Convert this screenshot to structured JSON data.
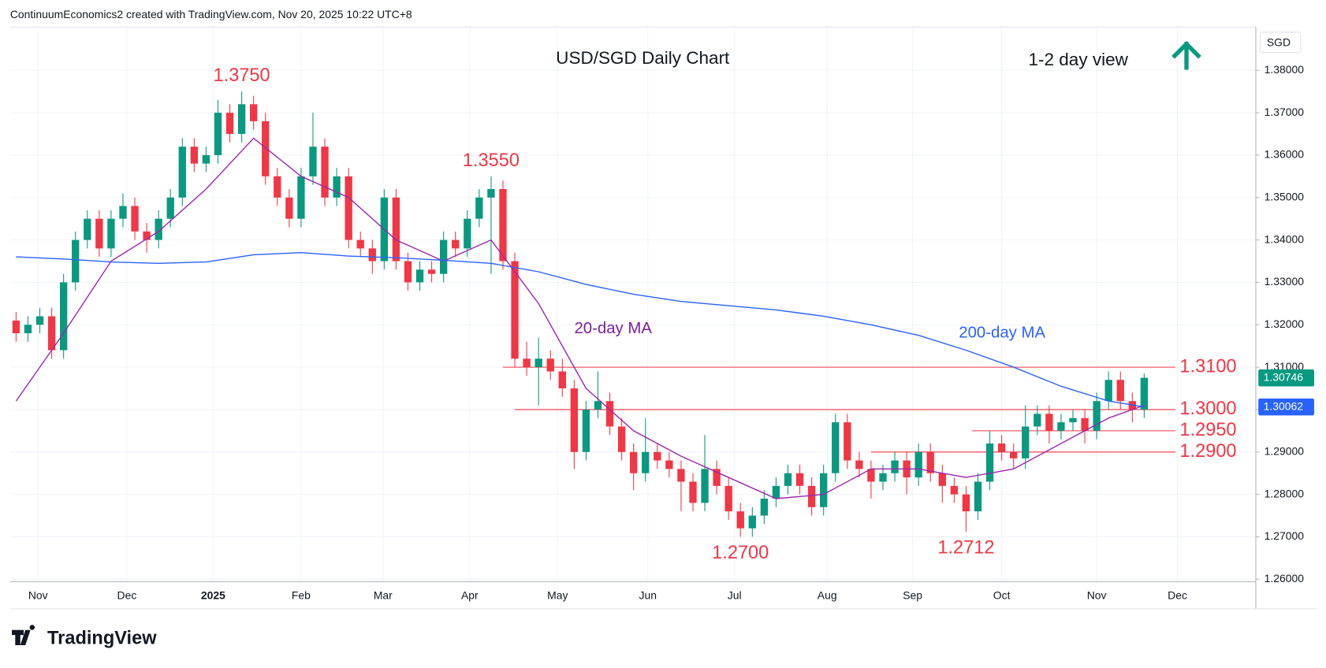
{
  "chart_data": {
    "type": "candlestick",
    "header": "ContinuumEconomics2 created with TradingView.com, Nov 20, 2025 10:22 UTC+8",
    "title": "USD/SGD Daily Chart",
    "subtitle": "1-2 day view",
    "currency": "SGD",
    "brand": "TradingView",
    "up_color": "#089981",
    "down_color": "#f23645",
    "open": [
      1.321,
      1.318,
      1.32,
      1.322,
      1.314,
      1.33,
      1.34,
      1.345,
      1.338,
      1.345,
      1.348,
      1.342,
      1.34,
      1.345,
      1.35,
      1.362,
      1.358,
      1.36,
      1.37,
      1.365,
      1.372,
      1.368,
      1.355,
      1.35,
      1.345,
      1.355,
      1.362,
      1.35,
      1.355,
      1.34,
      1.338,
      1.335,
      1.35,
      1.335,
      1.33,
      1.333,
      1.332,
      1.34,
      1.338,
      1.345,
      1.35,
      1.352,
      1.335,
      1.312,
      1.31,
      1.312,
      1.309,
      1.305,
      1.29,
      1.3,
      1.302,
      1.296,
      1.29,
      1.285,
      1.29,
      1.288,
      1.286,
      1.283,
      1.278,
      1.286,
      1.282,
      1.276,
      1.272,
      1.275,
      1.279,
      1.282,
      1.285,
      1.282,
      1.277,
      1.285,
      1.297,
      1.288,
      1.286,
      1.283,
      1.285,
      1.288,
      1.284,
      1.29,
      1.285,
      1.282,
      1.28,
      1.276,
      1.283,
      1.292,
      1.29,
      1.2885,
      1.296,
      1.299,
      1.295,
      1.297,
      1.298,
      1.295,
      1.302,
      1.307,
      1.302,
      1.3
    ],
    "high": [
      1.323,
      1.322,
      1.324,
      1.324,
      1.332,
      1.342,
      1.347,
      1.347,
      1.347,
      1.351,
      1.35,
      1.344,
      1.347,
      1.352,
      1.364,
      1.364,
      1.362,
      1.373,
      1.372,
      1.375,
      1.374,
      1.37,
      1.357,
      1.352,
      1.357,
      1.37,
      1.364,
      1.357,
      1.357,
      1.342,
      1.34,
      1.352,
      1.352,
      1.337,
      1.335,
      1.335,
      1.342,
      1.342,
      1.347,
      1.352,
      1.355,
      1.354,
      1.337,
      1.316,
      1.317,
      1.314,
      1.312,
      1.307,
      1.302,
      1.309,
      1.304,
      1.298,
      1.292,
      1.298,
      1.292,
      1.29,
      1.288,
      1.285,
      1.294,
      1.288,
      1.284,
      1.278,
      1.277,
      1.281,
      1.284,
      1.287,
      1.287,
      1.284,
      1.287,
      1.299,
      1.299,
      1.29,
      1.288,
      1.287,
      1.29,
      1.29,
      1.292,
      1.292,
      1.287,
      1.284,
      1.282,
      1.285,
      1.295,
      1.294,
      1.292,
      1.301,
      1.301,
      1.301,
      1.299,
      1.3,
      1.3,
      1.304,
      1.309,
      1.309,
      1.304,
      1.3085
    ],
    "low": [
      1.316,
      1.316,
      1.318,
      1.312,
      1.312,
      1.328,
      1.338,
      1.336,
      1.336,
      1.343,
      1.34,
      1.337,
      1.338,
      1.343,
      1.348,
      1.356,
      1.356,
      1.358,
      1.363,
      1.363,
      1.366,
      1.353,
      1.348,
      1.343,
      1.343,
      1.353,
      1.348,
      1.348,
      1.338,
      1.336,
      1.332,
      1.333,
      1.333,
      1.328,
      1.328,
      1.33,
      1.33,
      1.336,
      1.336,
      1.343,
      1.332,
      1.333,
      1.31,
      1.308,
      1.301,
      1.307,
      1.303,
      1.286,
      1.288,
      1.298,
      1.294,
      1.288,
      1.281,
      1.283,
      1.286,
      1.284,
      1.276,
      1.276,
      1.276,
      1.28,
      1.274,
      1.27,
      1.27,
      1.273,
      1.277,
      1.28,
      1.28,
      1.275,
      1.275,
      1.283,
      1.286,
      1.284,
      1.279,
      1.281,
      1.283,
      1.28,
      1.282,
      1.283,
      1.278,
      1.278,
      1.2712,
      1.274,
      1.281,
      1.288,
      1.286,
      1.286,
      1.294,
      1.292,
      1.293,
      1.295,
      1.292,
      1.293,
      1.3,
      1.3,
      1.297,
      1.298
    ],
    "close": [
      1.318,
      1.32,
      1.322,
      1.314,
      1.33,
      1.34,
      1.345,
      1.338,
      1.345,
      1.348,
      1.342,
      1.34,
      1.345,
      1.35,
      1.362,
      1.358,
      1.36,
      1.37,
      1.365,
      1.372,
      1.368,
      1.355,
      1.35,
      1.345,
      1.355,
      1.362,
      1.35,
      1.355,
      1.34,
      1.338,
      1.335,
      1.35,
      1.335,
      1.33,
      1.333,
      1.332,
      1.34,
      1.338,
      1.345,
      1.35,
      1.352,
      1.335,
      1.312,
      1.31,
      1.312,
      1.309,
      1.305,
      1.29,
      1.3,
      1.302,
      1.296,
      1.29,
      1.285,
      1.29,
      1.288,
      1.286,
      1.283,
      1.278,
      1.286,
      1.282,
      1.276,
      1.272,
      1.275,
      1.279,
      1.282,
      1.285,
      1.282,
      1.277,
      1.285,
      1.297,
      1.288,
      1.286,
      1.283,
      1.285,
      1.288,
      1.284,
      1.29,
      1.285,
      1.282,
      1.28,
      1.276,
      1.283,
      1.292,
      1.29,
      1.2885,
      1.296,
      1.299,
      1.295,
      1.297,
      1.298,
      1.295,
      1.302,
      1.307,
      1.302,
      1.3,
      1.3075
    ],
    "lines": [
      {
        "name": "20-day MA",
        "color": "#9c27b0",
        "x": [
          0,
          4,
          8,
          12,
          16,
          20,
          24,
          28,
          32,
          36,
          40,
          44,
          48,
          52,
          56,
          60,
          64,
          68,
          72,
          76,
          80,
          84,
          88,
          92,
          95
        ],
        "values": [
          1.302,
          1.318,
          1.335,
          1.342,
          1.352,
          1.364,
          1.355,
          1.35,
          1.34,
          1.335,
          1.34,
          1.325,
          1.305,
          1.295,
          1.289,
          1.284,
          1.279,
          1.28,
          1.286,
          1.286,
          1.284,
          1.286,
          1.292,
          1.298,
          1.301
        ]
      },
      {
        "name": "200-day MA",
        "color": "#2962ff",
        "x": [
          0,
          4,
          8,
          12,
          16,
          20,
          24,
          28,
          32,
          36,
          40,
          44,
          48,
          52,
          56,
          60,
          64,
          68,
          72,
          76,
          80,
          84,
          88,
          92,
          95
        ],
        "values": [
          1.336,
          1.3355,
          1.3348,
          1.3345,
          1.3348,
          1.3365,
          1.337,
          1.3362,
          1.3358,
          1.3352,
          1.3345,
          1.3325,
          1.3295,
          1.3272,
          1.3255,
          1.3245,
          1.3235,
          1.322,
          1.32,
          1.3175,
          1.314,
          1.31,
          1.3055,
          1.302,
          1.3006
        ]
      }
    ],
    "levels": [
      {
        "value": 1.31,
        "label": "1.3100",
        "from": 41
      },
      {
        "value": 1.3,
        "label": "1.3000",
        "from": 42
      },
      {
        "value": 1.295,
        "label": "1.2950",
        "from": 80.5
      },
      {
        "value": 1.29,
        "label": "1.2900",
        "from": 72
      }
    ],
    "annotations": [
      {
        "value": 1.375,
        "label": "1.3750",
        "at": 19,
        "side": "above"
      },
      {
        "value": 1.355,
        "label": "1.3550",
        "at": 40,
        "side": "above"
      },
      {
        "value": 1.27,
        "label": "1.2700",
        "at": 61,
        "side": "below"
      },
      {
        "value": 1.2712,
        "label": "1.2712",
        "at": 80,
        "side": "below"
      }
    ],
    "price_tags": [
      {
        "value": 1.30746,
        "label": "1.30746",
        "color": "#089981"
      },
      {
        "value": 1.30062,
        "label": "1.30062",
        "color": "#2962ff"
      }
    ],
    "xlim": [
      -0.5,
      104.4
    ],
    "xticks": [
      {
        "value": 1.85,
        "label": "Nov"
      },
      {
        "value": 9.33,
        "label": "Dec"
      },
      {
        "value": 16.6,
        "label": "2025"
      },
      {
        "value": 24,
        "label": "Feb"
      },
      {
        "value": 30.9,
        "label": "Mar"
      },
      {
        "value": 38.2,
        "label": "Apr"
      },
      {
        "value": 45.6,
        "label": "May"
      },
      {
        "value": 53.2,
        "label": "Jun"
      },
      {
        "value": 60.5,
        "label": "Jul"
      },
      {
        "value": 68.3,
        "label": "Aug"
      },
      {
        "value": 75.5,
        "label": "Sep"
      },
      {
        "value": 83,
        "label": "Oct"
      },
      {
        "value": 91,
        "label": "Nov"
      },
      {
        "value": 97.8,
        "label": "Dec"
      }
    ],
    "ylim": [
      1.2594,
      1.3902
    ],
    "yticks": [
      {
        "value": 1.26,
        "label": "1.26000"
      },
      {
        "value": 1.27,
        "label": "1.27000"
      },
      {
        "value": 1.28,
        "label": "1.28000"
      },
      {
        "value": 1.29,
        "label": "1.29000"
      },
      {
        "value": 1.3,
        "label": "1.30000"
      },
      {
        "value": 1.31,
        "label": "1.31000"
      },
      {
        "value": 1.32,
        "label": "1.32000"
      },
      {
        "value": 1.33,
        "label": "1.33000"
      },
      {
        "value": 1.34,
        "label": "1.34000"
      },
      {
        "value": 1.35,
        "label": "1.35000"
      },
      {
        "value": 1.36,
        "label": "1.36000"
      },
      {
        "value": 1.37,
        "label": "1.37000"
      },
      {
        "value": 1.38,
        "label": "1.38000"
      }
    ],
    "grid": true
  }
}
